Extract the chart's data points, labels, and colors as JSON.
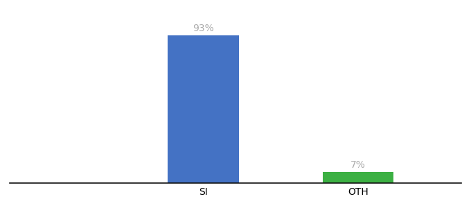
{
  "categories": [
    "SI",
    "OTH"
  ],
  "values": [
    93,
    7
  ],
  "bar_colors": [
    "#4472c4",
    "#3cb043"
  ],
  "label_texts": [
    "93%",
    "7%"
  ],
  "background_color": "#ffffff",
  "ylim": [
    0,
    105
  ],
  "label_fontsize": 10,
  "tick_fontsize": 10,
  "bar_width": 0.55,
  "label_color": "#aaaaaa",
  "xlim": [
    -1.0,
    2.5
  ]
}
